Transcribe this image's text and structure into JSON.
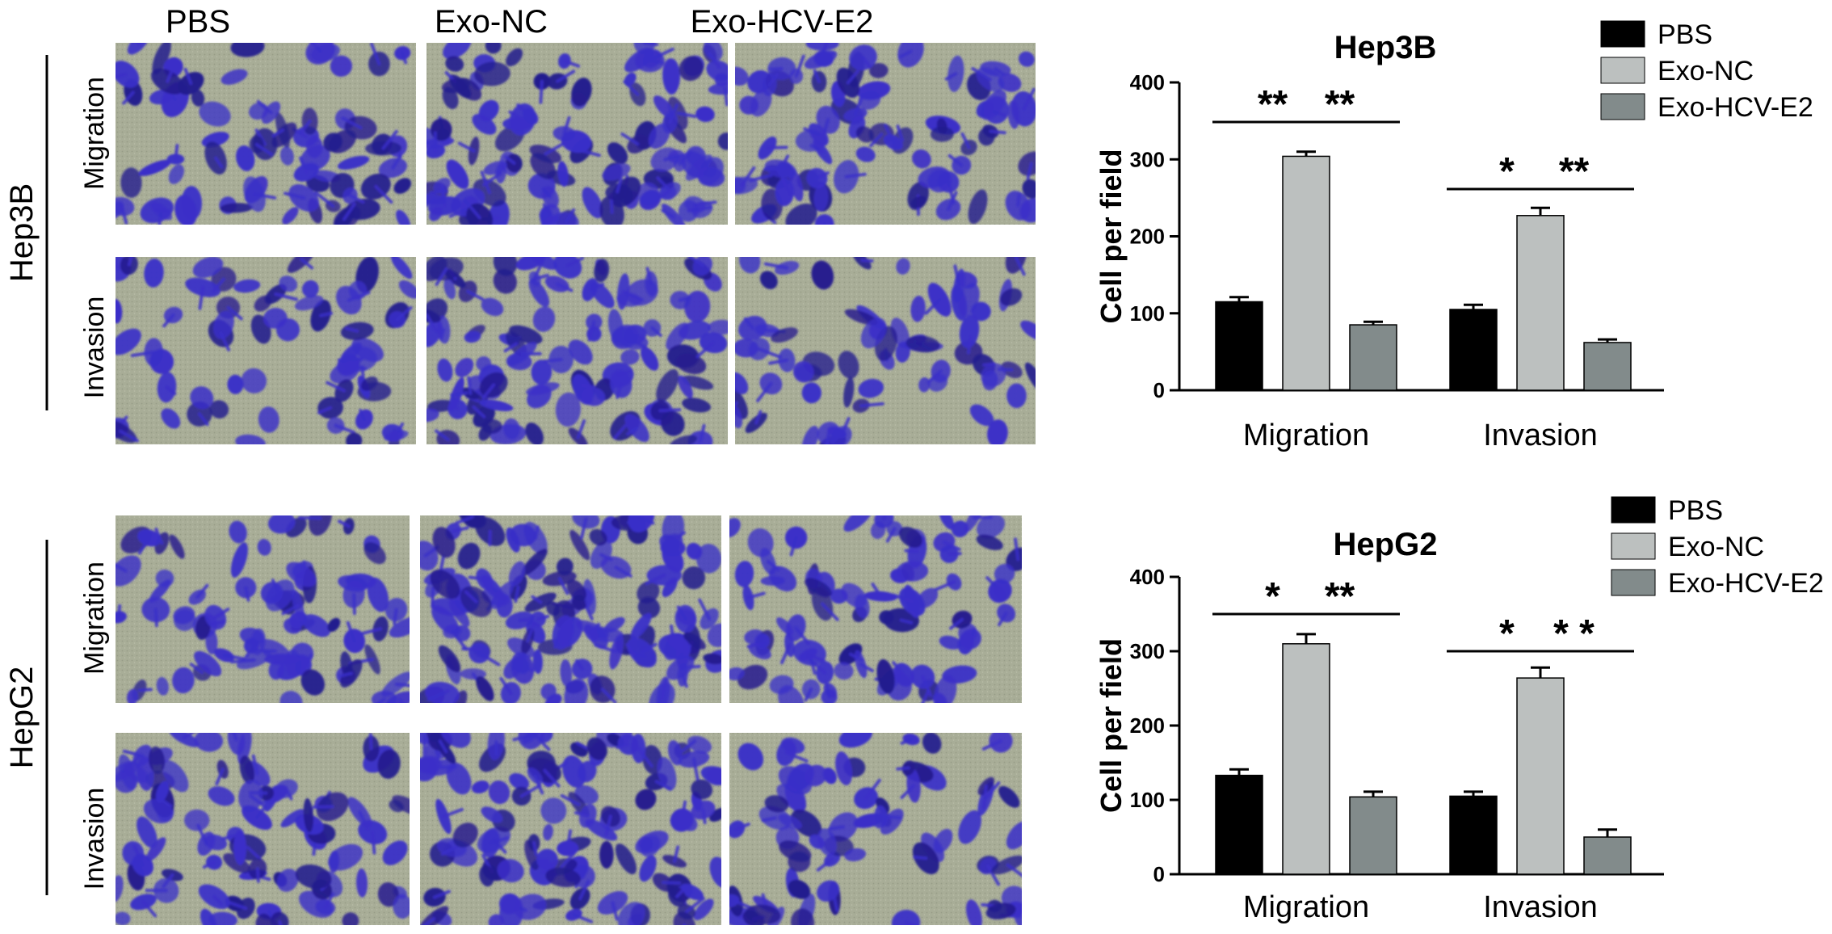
{
  "micrographs": {
    "column_headers": [
      "PBS",
      "Exo-NC",
      "Exo-HCV-E2"
    ],
    "groups": [
      {
        "cell_line": "Hep3B",
        "rows": [
          "Migration",
          "Invasion"
        ]
      },
      {
        "cell_line": "HepG2",
        "rows": [
          "Migration",
          "Invasion"
        ]
      }
    ],
    "colors": {
      "background": "#a8ad97",
      "cell_stain": "#3a2fc8",
      "cell_dark": "#241c8e"
    }
  },
  "chart_data": [
    {
      "type": "bar",
      "title": "Hep3B",
      "ylabel": "Cell per field",
      "xlabel": "",
      "ylim": [
        0,
        400
      ],
      "yticks": [
        0,
        100,
        200,
        300,
        400
      ],
      "categories": [
        "Migration",
        "Invasion"
      ],
      "series": [
        {
          "name": "PBS",
          "color": "#000000",
          "values": [
            115,
            105
          ],
          "errors": [
            6,
            6
          ]
        },
        {
          "name": "Exo-NC",
          "color": "#bcc0bf",
          "values": [
            304,
            227
          ],
          "errors": [
            6,
            10
          ]
        },
        {
          "name": "Exo-HCV-E2",
          "color": "#828b8b",
          "values": [
            85,
            62
          ],
          "errors": [
            4,
            4
          ]
        }
      ],
      "significance": [
        {
          "category": 0,
          "from": 0,
          "to": 1,
          "label": "**"
        },
        {
          "category": 0,
          "from": 1,
          "to": 2,
          "label": "**"
        },
        {
          "category": 1,
          "from": 0,
          "to": 1,
          "label": "*"
        },
        {
          "category": 1,
          "from": 1,
          "to": 2,
          "label": "**"
        }
      ],
      "legend": "top-right"
    },
    {
      "type": "bar",
      "title": "HepG2",
      "ylabel": "Cell per field",
      "xlabel": "",
      "ylim": [
        0,
        400
      ],
      "yticks": [
        0,
        100,
        200,
        300,
        400
      ],
      "categories": [
        "Migration",
        "Invasion"
      ],
      "series": [
        {
          "name": "PBS",
          "color": "#000000",
          "values": [
            133,
            105
          ],
          "errors": [
            8,
            6
          ]
        },
        {
          "name": "Exo-NC",
          "color": "#bcc0bf",
          "values": [
            310,
            264
          ],
          "errors": [
            13,
            14
          ]
        },
        {
          "name": "Exo-HCV-E2",
          "color": "#828b8b",
          "values": [
            104,
            50
          ],
          "errors": [
            7,
            10
          ]
        }
      ],
      "significance": [
        {
          "category": 0,
          "from": 0,
          "to": 1,
          "label": "*"
        },
        {
          "category": 0,
          "from": 1,
          "to": 2,
          "label": "**"
        },
        {
          "category": 1,
          "from": 0,
          "to": 1,
          "label": "*"
        },
        {
          "category": 1,
          "from": 1,
          "to": 2,
          "label": "* *"
        }
      ],
      "legend": "top-right"
    }
  ]
}
